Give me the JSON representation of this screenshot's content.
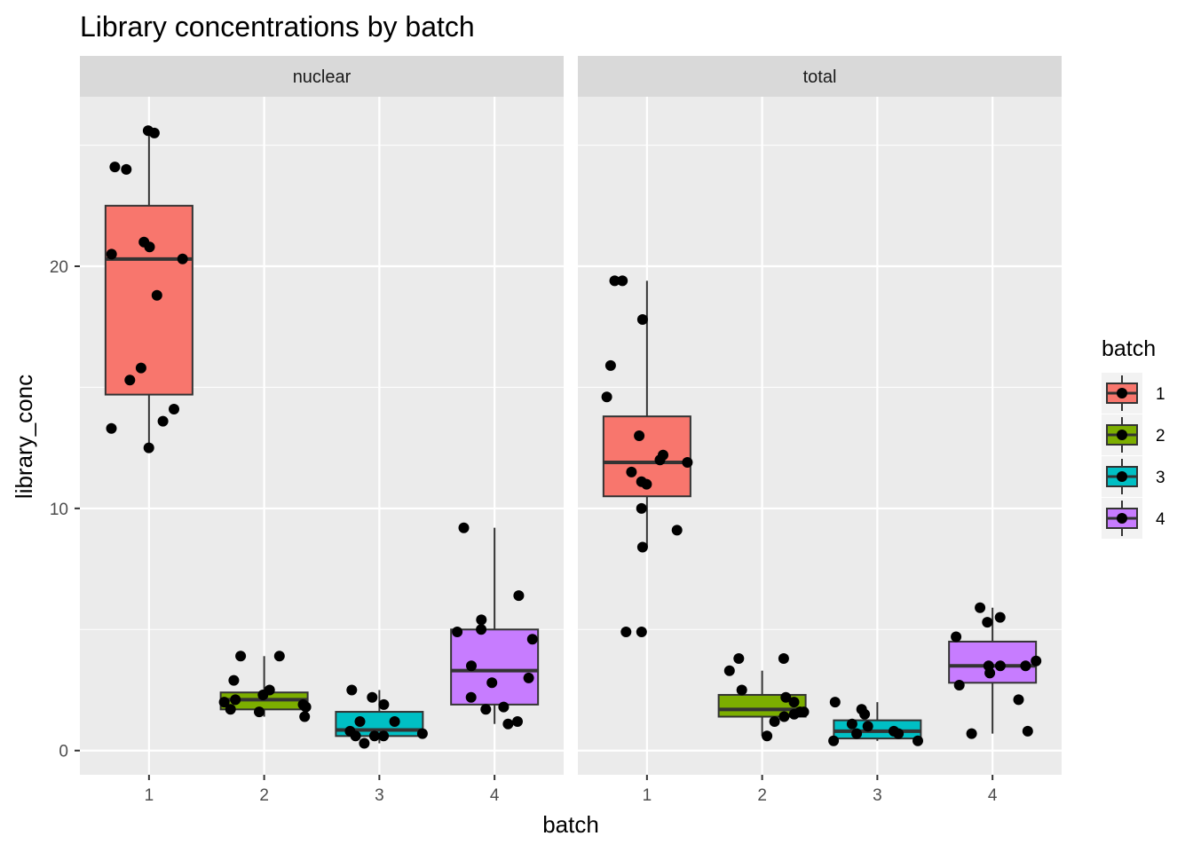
{
  "chart_data": {
    "type": "box",
    "title": "Library concentrations by batch",
    "xlabel": "batch",
    "ylabel": "library_conc",
    "ylim": [
      -1,
      27
    ],
    "y_ticks": [
      0,
      10,
      20
    ],
    "categories": [
      "1",
      "2",
      "3",
      "4"
    ],
    "fill_colors": [
      "#F8766D",
      "#7CAE00",
      "#00BFC4",
      "#C77CFF"
    ],
    "legend": {
      "title": "batch",
      "position": "right",
      "entries": [
        "1",
        "2",
        "3",
        "4"
      ]
    },
    "panels": [
      {
        "name": "nuclear",
        "boxes": [
          {
            "batch": "1",
            "whisker_low": 12.5,
            "q1": 14.7,
            "median": 20.3,
            "q3": 22.5,
            "whisker_high": 25.6
          },
          {
            "batch": "2",
            "whisker_low": 1.4,
            "q1": 1.7,
            "median": 2.1,
            "q3": 2.4,
            "whisker_high": 3.9
          },
          {
            "batch": "3",
            "whisker_low": 0.3,
            "q1": 0.6,
            "median": 0.85,
            "q3": 1.6,
            "whisker_high": 2.5
          },
          {
            "batch": "4",
            "whisker_low": 1.1,
            "q1": 1.9,
            "median": 3.3,
            "q3": 5.0,
            "whisker_high": 9.2
          }
        ],
        "points": [
          {
            "batch": "1",
            "y": [
              25.6,
              25.5,
              24.1,
              24.0,
              21.0,
              20.8,
              20.5,
              20.3,
              18.8,
              15.8,
              15.3,
              14.1,
              13.6,
              13.3,
              12.5
            ]
          },
          {
            "batch": "2",
            "y": [
              3.9,
              3.9,
              2.9,
              2.5,
              2.3,
              2.1,
              2.0,
              1.9,
              1.8,
              1.7,
              1.6,
              1.4
            ]
          },
          {
            "batch": "3",
            "y": [
              2.5,
              2.2,
              1.9,
              1.2,
              1.2,
              0.8,
              0.7,
              0.6,
              0.6,
              0.6,
              0.3
            ]
          },
          {
            "batch": "4",
            "y": [
              9.2,
              6.4,
              5.4,
              5.0,
              4.9,
              4.6,
              3.5,
              3.0,
              2.8,
              2.2,
              1.8,
              1.7,
              1.2,
              1.1
            ]
          }
        ]
      },
      {
        "name": "total",
        "boxes": [
          {
            "batch": "1",
            "whisker_low": 8.4,
            "q1": 10.5,
            "median": 11.9,
            "q3": 13.8,
            "whisker_high": 19.4
          },
          {
            "batch": "2",
            "whisker_low": 0.6,
            "q1": 1.4,
            "median": 1.7,
            "q3": 2.3,
            "whisker_high": 3.3
          },
          {
            "batch": "3",
            "whisker_low": 0.4,
            "q1": 0.5,
            "median": 0.8,
            "q3": 1.25,
            "whisker_high": 2.0
          },
          {
            "batch": "4",
            "whisker_low": 0.7,
            "q1": 2.8,
            "median": 3.5,
            "q3": 4.5,
            "whisker_high": 5.9
          }
        ],
        "points": [
          {
            "batch": "1",
            "y": [
              19.4,
              19.4,
              17.8,
              15.9,
              14.6,
              13.0,
              12.2,
              12.0,
              11.9,
              11.5,
              11.1,
              11.0,
              10.0,
              9.1,
              8.4,
              4.9,
              4.9
            ]
          },
          {
            "batch": "2",
            "y": [
              3.8,
              3.8,
              3.3,
              2.5,
              2.2,
              2.0,
              1.6,
              1.6,
              1.5,
              1.4,
              1.2,
              0.6
            ]
          },
          {
            "batch": "3",
            "y": [
              2.0,
              1.7,
              1.5,
              1.1,
              1.0,
              0.8,
              0.7,
              0.7,
              0.4,
              0.4
            ]
          },
          {
            "batch": "4",
            "y": [
              5.9,
              5.5,
              5.3,
              4.7,
              3.7,
              3.5,
              3.5,
              3.5,
              3.2,
              2.7,
              2.1,
              0.8,
              0.7
            ]
          }
        ]
      }
    ]
  }
}
